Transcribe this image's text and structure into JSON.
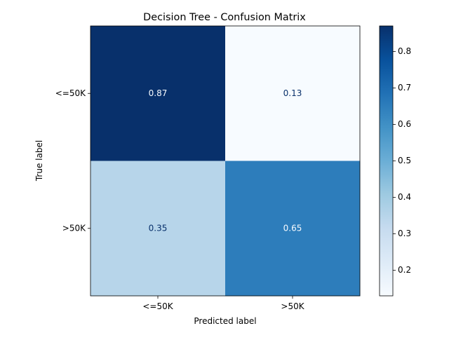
{
  "chart_data": {
    "type": "heatmap",
    "title": "Decision Tree - Confusion Matrix",
    "xlabel": "Predicted label",
    "ylabel": "True label",
    "x_categories": [
      "<=50K",
      ">50K"
    ],
    "y_categories": [
      "<=50K",
      ">50K"
    ],
    "values": [
      [
        0.87,
        0.13
      ],
      [
        0.35,
        0.65
      ]
    ],
    "value_labels": [
      [
        "0.87",
        "0.13"
      ],
      [
        "0.35",
        "0.65"
      ]
    ],
    "colormap": "Blues",
    "colorbar": {
      "range": [
        0.13,
        0.87
      ],
      "ticks": [
        0.2,
        0.3,
        0.4,
        0.5,
        0.6,
        0.7,
        0.8
      ],
      "tick_labels": [
        "0.2",
        "0.3",
        "0.4",
        "0.5",
        "0.6",
        "0.7",
        "0.8"
      ]
    },
    "grid": false
  }
}
